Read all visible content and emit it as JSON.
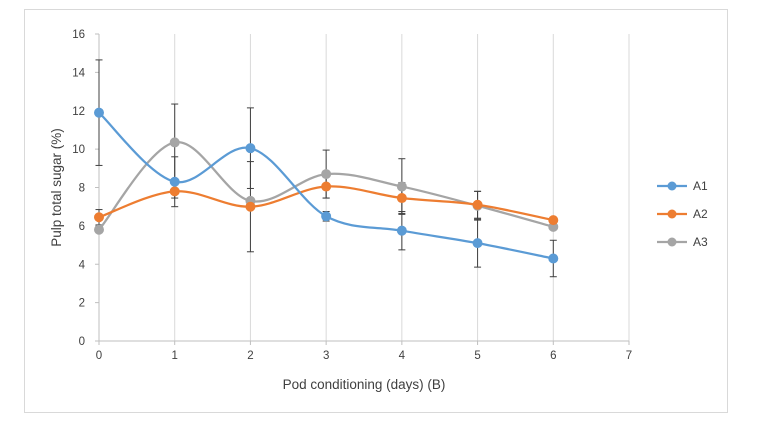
{
  "chart_data": {
    "type": "line",
    "title": "",
    "xlabel": "Pod conditioning (days) (B)",
    "ylabel": "Pulp total sugar (%)",
    "xlim": [
      0,
      7
    ],
    "ylim": [
      0,
      16
    ],
    "xticks": [
      0,
      1,
      2,
      3,
      4,
      5,
      6,
      7
    ],
    "yticks": [
      0,
      2,
      4,
      6,
      8,
      10,
      12,
      14,
      16
    ],
    "grid": "vertical",
    "legend": "right",
    "x": [
      0,
      1,
      2,
      3,
      4,
      5,
      6
    ],
    "series": [
      {
        "name": "A1",
        "color": "#5b9bd5",
        "values": [
          11.9,
          8.3,
          10.05,
          6.5,
          5.75,
          5.1,
          4.3
        ],
        "errors": [
          2.75,
          1.3,
          2.1,
          0.25,
          1.0,
          1.25,
          0.95
        ]
      },
      {
        "name": "A2",
        "color": "#ed7d31",
        "values": [
          6.45,
          7.8,
          7.0,
          8.05,
          7.45,
          7.1,
          6.3
        ],
        "errors": [
          0.4,
          0.35,
          2.35,
          0.6,
          0.8,
          0.7,
          0.0
        ]
      },
      {
        "name": "A3",
        "color": "#a5a5a5",
        "values": [
          5.8,
          10.35,
          7.3,
          8.7,
          8.05,
          7.05,
          5.95
        ],
        "errors": [
          0.0,
          2.0,
          0.0,
          1.25,
          1.45,
          0.75,
          0.0
        ]
      }
    ]
  }
}
